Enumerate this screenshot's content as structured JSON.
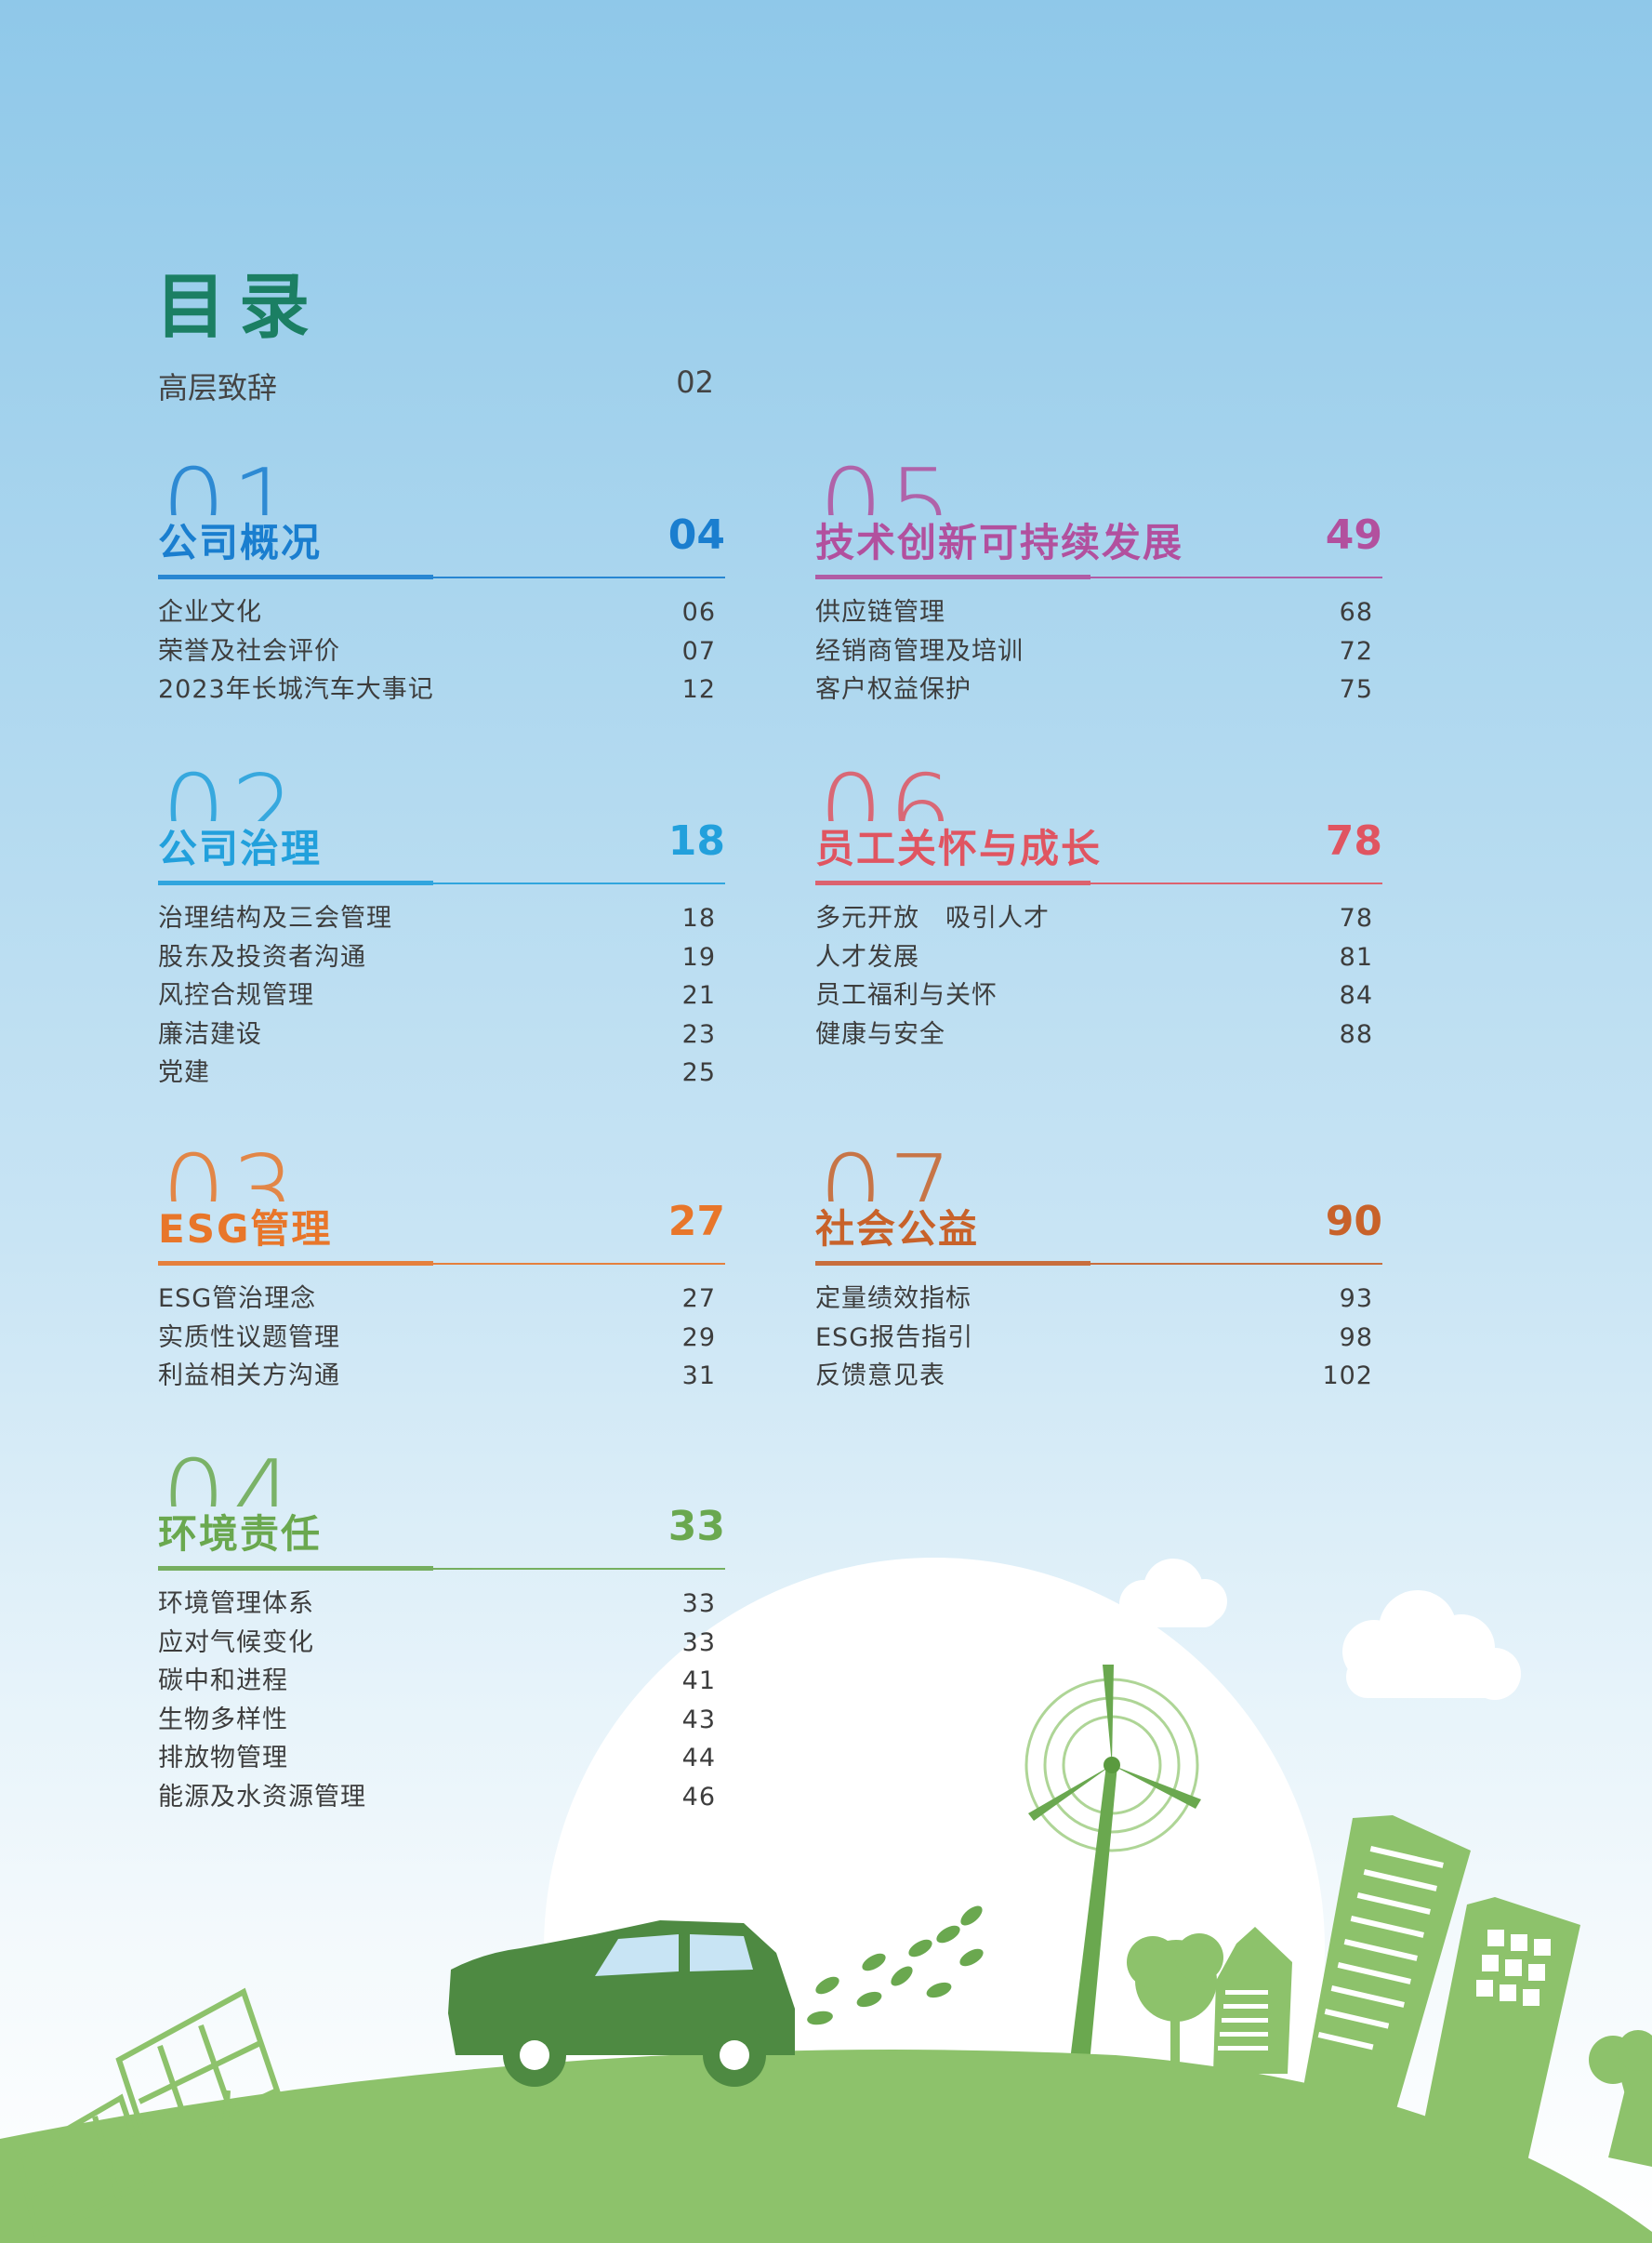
{
  "title": "目录",
  "intro": {
    "label": "高层致辞",
    "page": "02"
  },
  "colors": {
    "title": "#1b7f63",
    "s01": "#1a7ecf",
    "s02": "#22a0dc",
    "s03": "#e8762a",
    "s04": "#6aa84f",
    "s05": "#b2509e",
    "s06": "#e05561",
    "s07": "#c8622a"
  },
  "sections": [
    {
      "num": "01",
      "title": "公司概况",
      "page": "04",
      "items": [
        {
          "label": "企业文化",
          "page": "06"
        },
        {
          "label": "荣誉及社会评价",
          "page": "07"
        },
        {
          "label": "2023年长城汽车大事记",
          "page": "12"
        }
      ]
    },
    {
      "num": "02",
      "title": "公司治理",
      "page": "18",
      "items": [
        {
          "label": "治理结构及三会管理",
          "page": "18"
        },
        {
          "label": "股东及投资者沟通",
          "page": "19"
        },
        {
          "label": "风控合规管理",
          "page": "21"
        },
        {
          "label": "廉洁建设",
          "page": "23"
        },
        {
          "label": "党建",
          "page": "25"
        }
      ]
    },
    {
      "num": "03",
      "title": "ESG管理",
      "page": "27",
      "items": [
        {
          "label": "ESG管治理念",
          "page": "27"
        },
        {
          "label": "实质性议题管理",
          "page": "29"
        },
        {
          "label": "利益相关方沟通",
          "page": "31"
        }
      ]
    },
    {
      "num": "04",
      "title": "环境责任",
      "page": "33",
      "items": [
        {
          "label": "环境管理体系",
          "page": "33"
        },
        {
          "label": "应对气候变化",
          "page": "33"
        },
        {
          "label": "碳中和进程",
          "page": "41"
        },
        {
          "label": "生物多样性",
          "page": "43"
        },
        {
          "label": "排放物管理",
          "page": "44"
        },
        {
          "label": "能源及水资源管理",
          "page": "46"
        }
      ]
    },
    {
      "num": "05",
      "title": "技术创新可持续发展",
      "page": "49",
      "items": [
        {
          "label": "供应链管理",
          "page": "68"
        },
        {
          "label": "经销商管理及培训",
          "page": "72"
        },
        {
          "label": "客户权益保护",
          "page": "75"
        }
      ]
    },
    {
      "num": "06",
      "title": "员工关怀与成长",
      "page": "78",
      "items": [
        {
          "label": "多元开放　吸引人才",
          "page": "78"
        },
        {
          "label": "人才发展",
          "page": "81"
        },
        {
          "label": "员工福利与关怀",
          "page": "84"
        },
        {
          "label": "健康与安全",
          "page": "88"
        }
      ]
    },
    {
      "num": "07",
      "title": "社会公益",
      "page": "90",
      "items": [
        {
          "label": "定量绩效指标",
          "page": "93"
        },
        {
          "label": "ESG报告指引",
          "page": "98"
        },
        {
          "label": "反馈意见表",
          "page": "102"
        }
      ]
    }
  ]
}
